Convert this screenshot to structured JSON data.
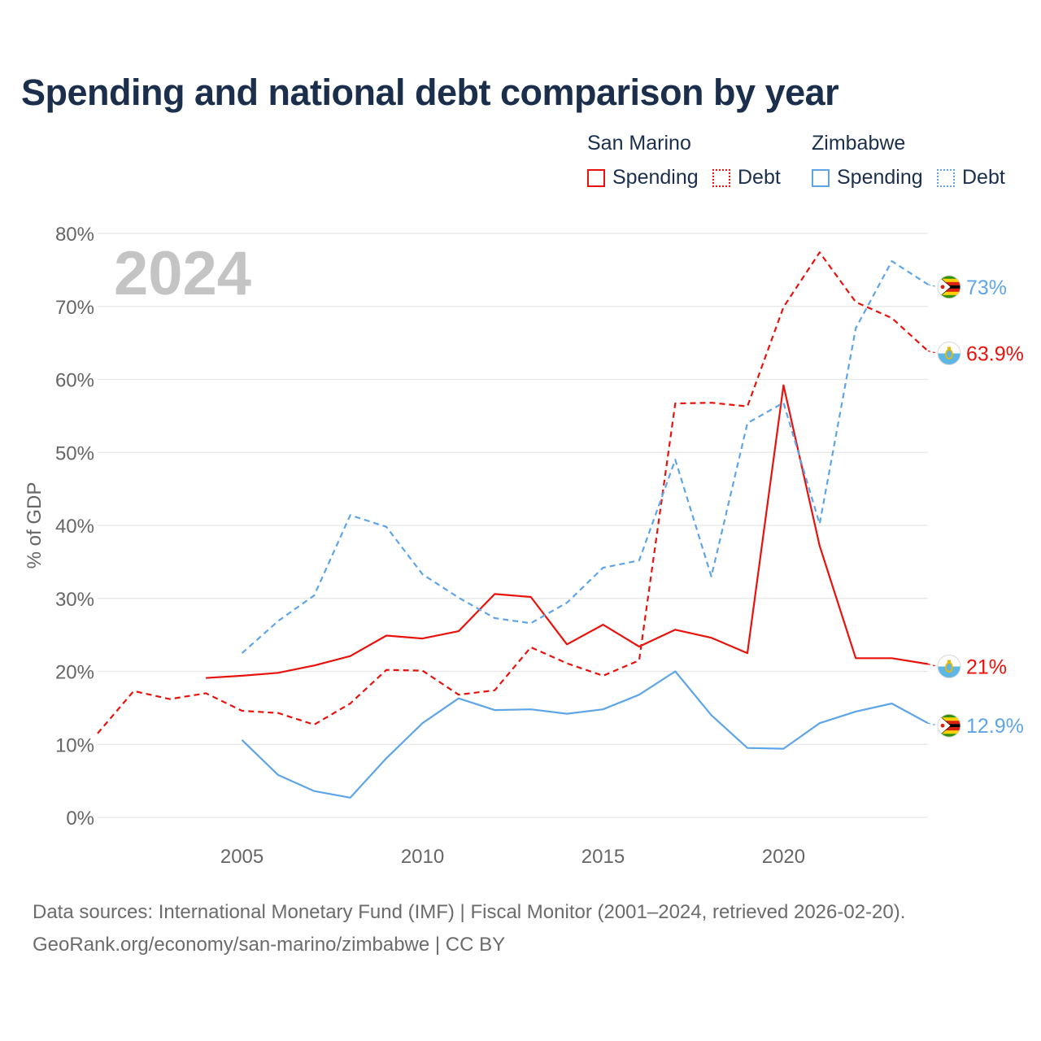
{
  "title": "Spending and national debt comparison by year",
  "legend": {
    "groups": [
      {
        "country": "San Marino",
        "spending_label": "Spending",
        "debt_label": "Debt"
      },
      {
        "country": "Zimbabwe",
        "spending_label": "Spending",
        "debt_label": "Debt"
      }
    ]
  },
  "colors": {
    "san_marino": "#e8120c",
    "zimbabwe": "#5ea5e8",
    "grid": "#e6e6e6",
    "axis_text": "#666666",
    "year_watermark": "#c4c4c4"
  },
  "chart_data": {
    "type": "line",
    "title": "Spending and national debt comparison by year",
    "ylabel": "% of GDP",
    "xlabel": "",
    "year_label": "2024",
    "xlim": [
      2001,
      2024
    ],
    "ylim": [
      0,
      80
    ],
    "x_ticks": [
      2005,
      2010,
      2015,
      2020
    ],
    "y_ticks": [
      0,
      10,
      20,
      30,
      40,
      50,
      60,
      70,
      80
    ],
    "y_tick_suffix": "%",
    "grid": true,
    "series": [
      {
        "name": "San Marino Spending",
        "country": "San Marino",
        "measure": "Spending",
        "style": "solid",
        "color": "#e8120c",
        "icon": "san-marino-flag-icon",
        "end_label": "21%",
        "x": [
          2004,
          2005,
          2006,
          2007,
          2008,
          2009,
          2010,
          2011,
          2012,
          2013,
          2014,
          2015,
          2016,
          2017,
          2018,
          2019,
          2020,
          2021,
          2022,
          2023,
          2024
        ],
        "y": [
          19.1,
          19.4,
          19.8,
          20.8,
          22.1,
          24.9,
          24.5,
          25.5,
          30.6,
          30.2,
          23.7,
          26.4,
          23.4,
          25.7,
          24.6,
          22.5,
          59.2,
          37.2,
          21.8,
          21.8,
          21.0
        ]
      },
      {
        "name": "San Marino Debt",
        "country": "San Marino",
        "measure": "Debt",
        "style": "dashed",
        "color": "#e8120c",
        "icon": "san-marino-flag-icon",
        "end_label": "63.9%",
        "x": [
          2001,
          2002,
          2003,
          2004,
          2005,
          2006,
          2007,
          2008,
          2009,
          2010,
          2011,
          2012,
          2013,
          2014,
          2015,
          2016,
          2017,
          2018,
          2019,
          2020,
          2021,
          2022,
          2023,
          2024
        ],
        "y": [
          11.5,
          17.3,
          16.2,
          17.0,
          14.6,
          14.3,
          12.7,
          15.6,
          20.2,
          20.1,
          16.8,
          17.4,
          23.3,
          21.1,
          19.4,
          21.5,
          56.7,
          56.8,
          56.3,
          69.9,
          77.4,
          70.6,
          68.4,
          63.9
        ]
      },
      {
        "name": "Zimbabwe Spending",
        "country": "Zimbabwe",
        "measure": "Spending",
        "style": "solid",
        "color": "#5ea5e8",
        "icon": "zimbabwe-flag-icon",
        "end_label": "12.9%",
        "x": [
          2005,
          2006,
          2007,
          2008,
          2009,
          2010,
          2011,
          2012,
          2013,
          2014,
          2015,
          2016,
          2017,
          2018,
          2019,
          2020,
          2021,
          2022,
          2023,
          2024
        ],
        "y": [
          10.6,
          5.8,
          3.6,
          2.7,
          8.1,
          12.9,
          16.3,
          14.7,
          14.8,
          14.2,
          14.8,
          16.8,
          20.0,
          14.0,
          9.5,
          9.4,
          12.9,
          14.5,
          15.6,
          12.9
        ]
      },
      {
        "name": "Zimbabwe Debt",
        "country": "Zimbabwe",
        "measure": "Debt",
        "style": "dashed",
        "color": "#5ea5e8",
        "icon": "zimbabwe-flag-icon",
        "end_label": "73%",
        "x": [
          2005,
          2006,
          2007,
          2008,
          2009,
          2010,
          2011,
          2012,
          2013,
          2014,
          2015,
          2016,
          2017,
          2018,
          2019,
          2020,
          2021,
          2022,
          2023,
          2024
        ],
        "y": [
          22.5,
          26.9,
          30.4,
          41.4,
          39.8,
          33.3,
          30.1,
          27.3,
          26.6,
          29.4,
          34.2,
          35.2,
          49.0,
          33.0,
          54.0,
          56.8,
          40.2,
          67.0,
          76.2,
          73.0
        ]
      }
    ]
  },
  "footer": {
    "line1": "Data sources: International Monetary Fund (IMF) | Fiscal Monitor (2001–2024, retrieved 2026-02-20).",
    "line2": "GeoRank.org/economy/san-marino/zimbabwe | CC BY"
  }
}
